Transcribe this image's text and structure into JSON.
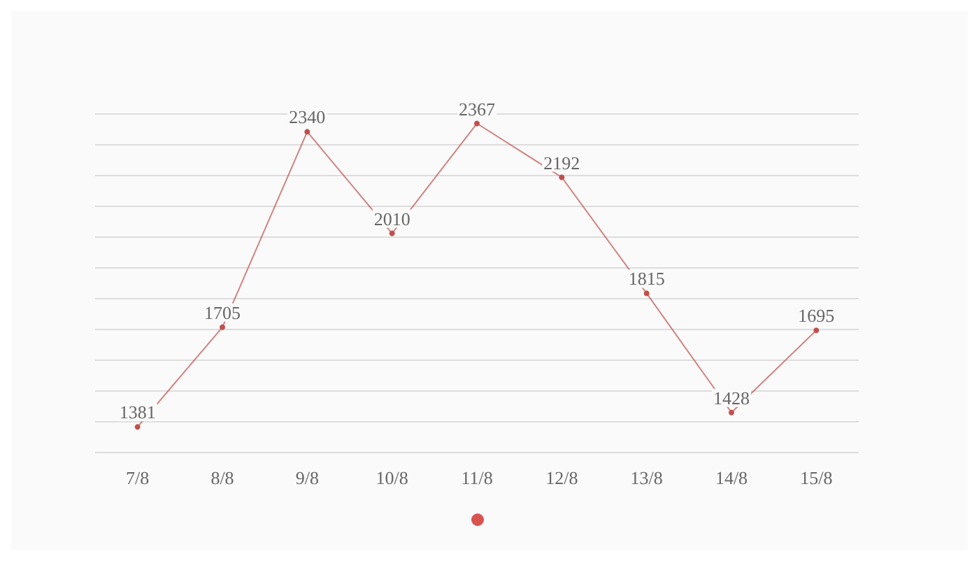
{
  "chart_data": {
    "type": "line",
    "categories": [
      "7/8",
      "8/8",
      "9/8",
      "10/8",
      "11/8",
      "12/8",
      "13/8",
      "14/8",
      "15/8"
    ],
    "series": [
      {
        "color": "#c0504d",
        "values": [
          1381,
          1705,
          2340,
          2010,
          2367,
          2192,
          1815,
          1428,
          1695
        ]
      }
    ],
    "ylim": [
      1300,
      2400
    ],
    "yticks": [
      {
        "value": 1300,
        "label": null
      },
      {
        "value": 1400,
        "label": null
      },
      {
        "value": 1500,
        "label": null
      },
      {
        "value": 1600,
        "label": null
      },
      {
        "value": 1700,
        "label": null
      },
      {
        "value": 1800,
        "label": null
      },
      {
        "value": 1900,
        "label": null
      },
      {
        "value": 2000,
        "label": null
      },
      {
        "value": 2100,
        "label": null
      },
      {
        "value": 2200,
        "label": null
      },
      {
        "value": 2300,
        "label": null
      },
      {
        "value": 2400,
        "label": null
      }
    ],
    "tick_labels": "x",
    "grid": "y",
    "data_labels": true,
    "marker": "circle",
    "line_style": "solid"
  }
}
